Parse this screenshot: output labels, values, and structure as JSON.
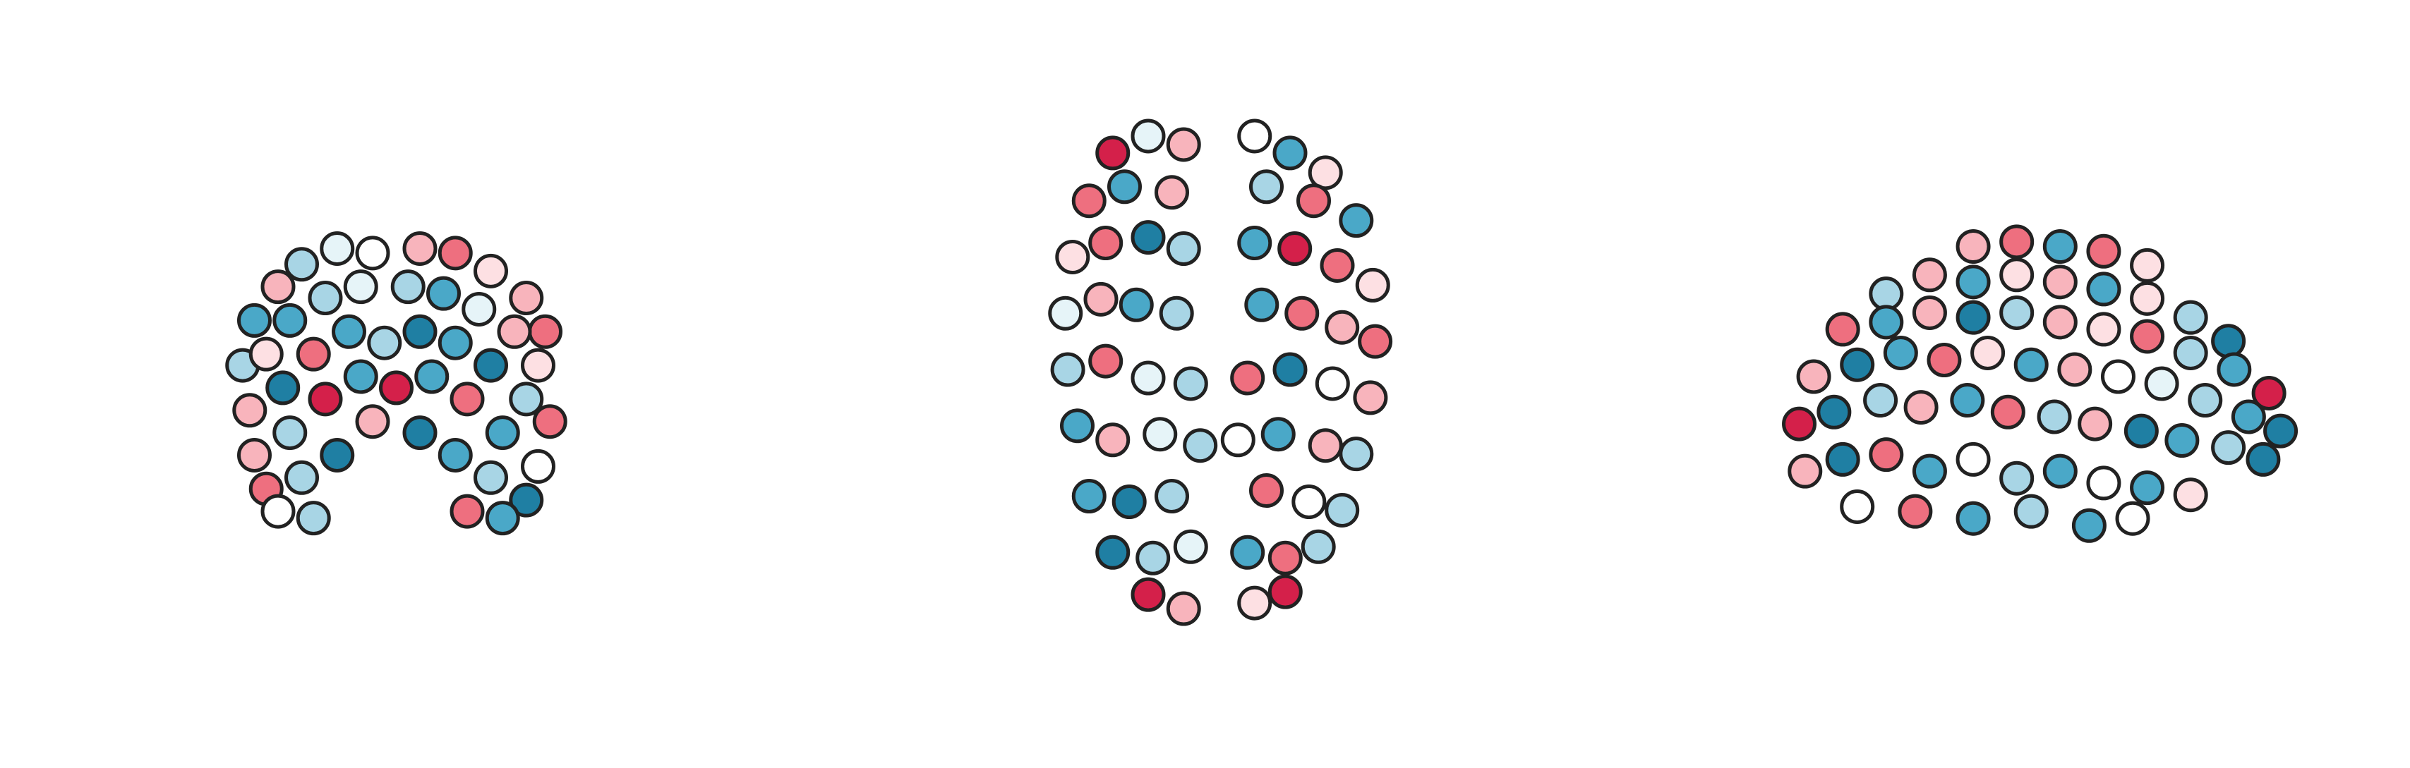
{
  "chart_data": [
    {
      "type": "scatter",
      "xlim": [
        -70,
        70
      ],
      "ylim": [
        -50,
        80
      ],
      "x": [
        -60,
        -50,
        -40,
        -25,
        -10,
        10,
        25,
        40,
        55,
        63,
        -65,
        -55,
        -45,
        -30,
        -15,
        5,
        20,
        35,
        50,
        60,
        -62,
        -48,
        -35,
        -20,
        -5,
        10,
        25,
        40,
        55,
        65,
        -60,
        -45,
        -30,
        -15,
        0,
        15,
        30,
        45,
        60,
        -55,
        -40,
        -25,
        -10,
        10,
        25,
        40,
        55,
        -50,
        -35,
        30,
        45
      ],
      "y": [
        40,
        55,
        65,
        72,
        70,
        72,
        70,
        62,
        50,
        35,
        20,
        25,
        40,
        50,
        55,
        55,
        52,
        45,
        35,
        20,
        0,
        10,
        25,
        35,
        30,
        35,
        30,
        20,
        5,
        -5,
        -20,
        -10,
        5,
        15,
        10,
        15,
        5,
        -10,
        -25,
        -35,
        -30,
        -20,
        -5,
        -10,
        -20,
        -30,
        -40,
        -45,
        -48,
        -45,
        -48
      ],
      "colors": [
        "#4aa8c8",
        "#f8b4bc",
        "#a8d5e5",
        "#e6f4f8",
        "#ffffff",
        "#f8b4bc",
        "#ee6f7f",
        "#fde0e3",
        "#f8b4bc",
        "#ee6f7f",
        "#a8d5e5",
        "#fde0e3",
        "#4aa8c8",
        "#a8d5e5",
        "#e6f4f8",
        "#a8d5e5",
        "#4aa8c8",
        "#e6f4f8",
        "#f8b4bc",
        "#fde0e3",
        "#f8b4bc",
        "#1f7fa3",
        "#ee6f7f",
        "#4aa8c8",
        "#a8d5e5",
        "#1f7fa3",
        "#4aa8c8",
        "#1f7fa3",
        "#a8d5e5",
        "#ee6f7f",
        "#f8b4bc",
        "#a8d5e5",
        "#d4204a",
        "#4aa8c8",
        "#d4204a",
        "#4aa8c8",
        "#ee6f7f",
        "#4aa8c8",
        "#ffffff",
        "#ee6f7f",
        "#a8d5e5",
        "#1f7fa3",
        "#f8b4bc",
        "#1f7fa3",
        "#4aa8c8",
        "#a8d5e5",
        "#1f7fa3",
        "#ffffff",
        "#a8d5e5",
        "#ee6f7f",
        "#4aa8c8"
      ]
    },
    {
      "type": "scatter",
      "xlim": [
        -70,
        70
      ],
      "ylim": [
        -105,
        70
      ],
      "x": [
        -45,
        -30,
        -15,
        15,
        30,
        45,
        -55,
        -40,
        -20,
        20,
        40,
        58,
        -62,
        -48,
        -30,
        -15,
        15,
        32,
        50,
        65,
        -65,
        -50,
        -35,
        -18,
        18,
        35,
        52,
        66,
        -64,
        -48,
        -30,
        -12,
        12,
        30,
        48,
        64,
        -60,
        -45,
        -25,
        -8,
        8,
        25,
        45,
        58,
        -55,
        -38,
        -20,
        20,
        38,
        52,
        -45,
        -28,
        -12,
        12,
        28,
        42,
        -30,
        -15,
        15,
        28
      ],
      "y": [
        62,
        68,
        65,
        68,
        62,
        55,
        45,
        50,
        48,
        50,
        45,
        38,
        25,
        30,
        32,
        28,
        30,
        28,
        22,
        15,
        5,
        10,
        8,
        5,
        8,
        5,
        0,
        -5,
        -15,
        -12,
        -18,
        -20,
        -18,
        -15,
        -20,
        -25,
        -35,
        -40,
        -38,
        -42,
        -40,
        -38,
        -42,
        -45,
        -60,
        -62,
        -60,
        -58,
        -62,
        -65,
        -80,
        -82,
        -78,
        -80,
        -82,
        -78,
        -95,
        -100,
        -98,
        -94
      ],
      "colors": [
        "#d4204a",
        "#e6f4f8",
        "#f8b4bc",
        "#ffffff",
        "#4aa8c8",
        "#fde0e3",
        "#ee6f7f",
        "#4aa8c8",
        "#f8b4bc",
        "#a8d5e5",
        "#ee6f7f",
        "#4aa8c8",
        "#fde0e3",
        "#ee6f7f",
        "#1f7fa3",
        "#a8d5e5",
        "#4aa8c8",
        "#d4204a",
        "#ee6f7f",
        "#fde0e3",
        "#e6f4f8",
        "#f8b4bc",
        "#4aa8c8",
        "#a8d5e5",
        "#4aa8c8",
        "#ee6f7f",
        "#f8b4bc",
        "#ee6f7f",
        "#a8d5e5",
        "#ee6f7f",
        "#e6f4f8",
        "#a8d5e5",
        "#ee6f7f",
        "#1f7fa3",
        "#ffffff",
        "#f8b4bc",
        "#4aa8c8",
        "#f8b4bc",
        "#e6f4f8",
        "#a8d5e5",
        "#ffffff",
        "#4aa8c8",
        "#f8b4bc",
        "#a8d5e5",
        "#4aa8c8",
        "#1f7fa3",
        "#a8d5e5",
        "#ee6f7f",
        "#ffffff",
        "#a8d5e5",
        "#1f7fa3",
        "#a8d5e5",
        "#e6f4f8",
        "#4aa8c8",
        "#ee6f7f",
        "#a8d5e5",
        "#d4204a",
        "#f8b4bc",
        "#fde0e3",
        "#d4204a"
      ]
    },
    {
      "type": "scatter",
      "xlim": [
        -105,
        70
      ],
      "ylim": [
        -50,
        80
      ],
      "x": [
        -40,
        -25,
        -10,
        5,
        20,
        -70,
        -55,
        -40,
        -25,
        -10,
        5,
        20,
        35,
        48,
        -85,
        -70,
        -55,
        -40,
        -25,
        -10,
        5,
        20,
        35,
        50,
        62,
        -95,
        -80,
        -65,
        -50,
        -35,
        -20,
        -5,
        10,
        25,
        40,
        55,
        66,
        -100,
        -88,
        -72,
        -58,
        -42,
        -28,
        -12,
        2,
        18,
        32,
        48,
        60,
        -98,
        -85,
        -70,
        -55,
        -40,
        -25,
        -10,
        5,
        20,
        35,
        -80,
        -60,
        -40,
        -20,
        0,
        15
      ],
      "y": [
        70,
        72,
        70,
        68,
        62,
        50,
        58,
        55,
        58,
        55,
        52,
        48,
        40,
        30,
        35,
        38,
        42,
        40,
        42,
        38,
        35,
        32,
        25,
        18,
        8,
        15,
        20,
        25,
        22,
        25,
        20,
        18,
        15,
        12,
        5,
        -2,
        -8,
        -5,
        0,
        5,
        2,
        5,
        0,
        -2,
        -5,
        -8,
        -12,
        -15,
        -20,
        -25,
        -20,
        -18,
        -25,
        -20,
        -28,
        -25,
        -30,
        -32,
        -35,
        -40,
        -42,
        -45,
        -42,
        -48,
        -45
      ],
      "colors": [
        "#f8b4bc",
        "#ee6f7f",
        "#4aa8c8",
        "#ee6f7f",
        "#fde0e3",
        "#a8d5e5",
        "#f8b4bc",
        "#4aa8c8",
        "#fde0e3",
        "#f8b4bc",
        "#4aa8c8",
        "#fde0e3",
        "#a8d5e5",
        "#1f7fa3",
        "#ee6f7f",
        "#4aa8c8",
        "#f8b4bc",
        "#1f7fa3",
        "#a8d5e5",
        "#f8b4bc",
        "#fde0e3",
        "#ee6f7f",
        "#a8d5e5",
        "#4aa8c8",
        "#d4204a",
        "#f8b4bc",
        "#1f7fa3",
        "#4aa8c8",
        "#ee6f7f",
        "#fde0e3",
        "#4aa8c8",
        "#f8b4bc",
        "#ffffff",
        "#e6f4f8",
        "#a8d5e5",
        "#4aa8c8",
        "#1f7fa3",
        "#d4204a",
        "#1f7fa3",
        "#a8d5e5",
        "#f8b4bc",
        "#4aa8c8",
        "#ee6f7f",
        "#a8d5e5",
        "#f8b4bc",
        "#1f7fa3",
        "#4aa8c8",
        "#a8d5e5",
        "#1f7fa3",
        "#f8b4bc",
        "#1f7fa3",
        "#ee6f7f",
        "#4aa8c8",
        "#ffffff",
        "#a8d5e5",
        "#4aa8c8",
        "#ffffff",
        "#4aa8c8",
        "#fde0e3",
        "#ffffff",
        "#ee6f7f",
        "#4aa8c8",
        "#a8d5e5",
        "#4aa8c8",
        "#ffffff"
      ]
    }
  ]
}
